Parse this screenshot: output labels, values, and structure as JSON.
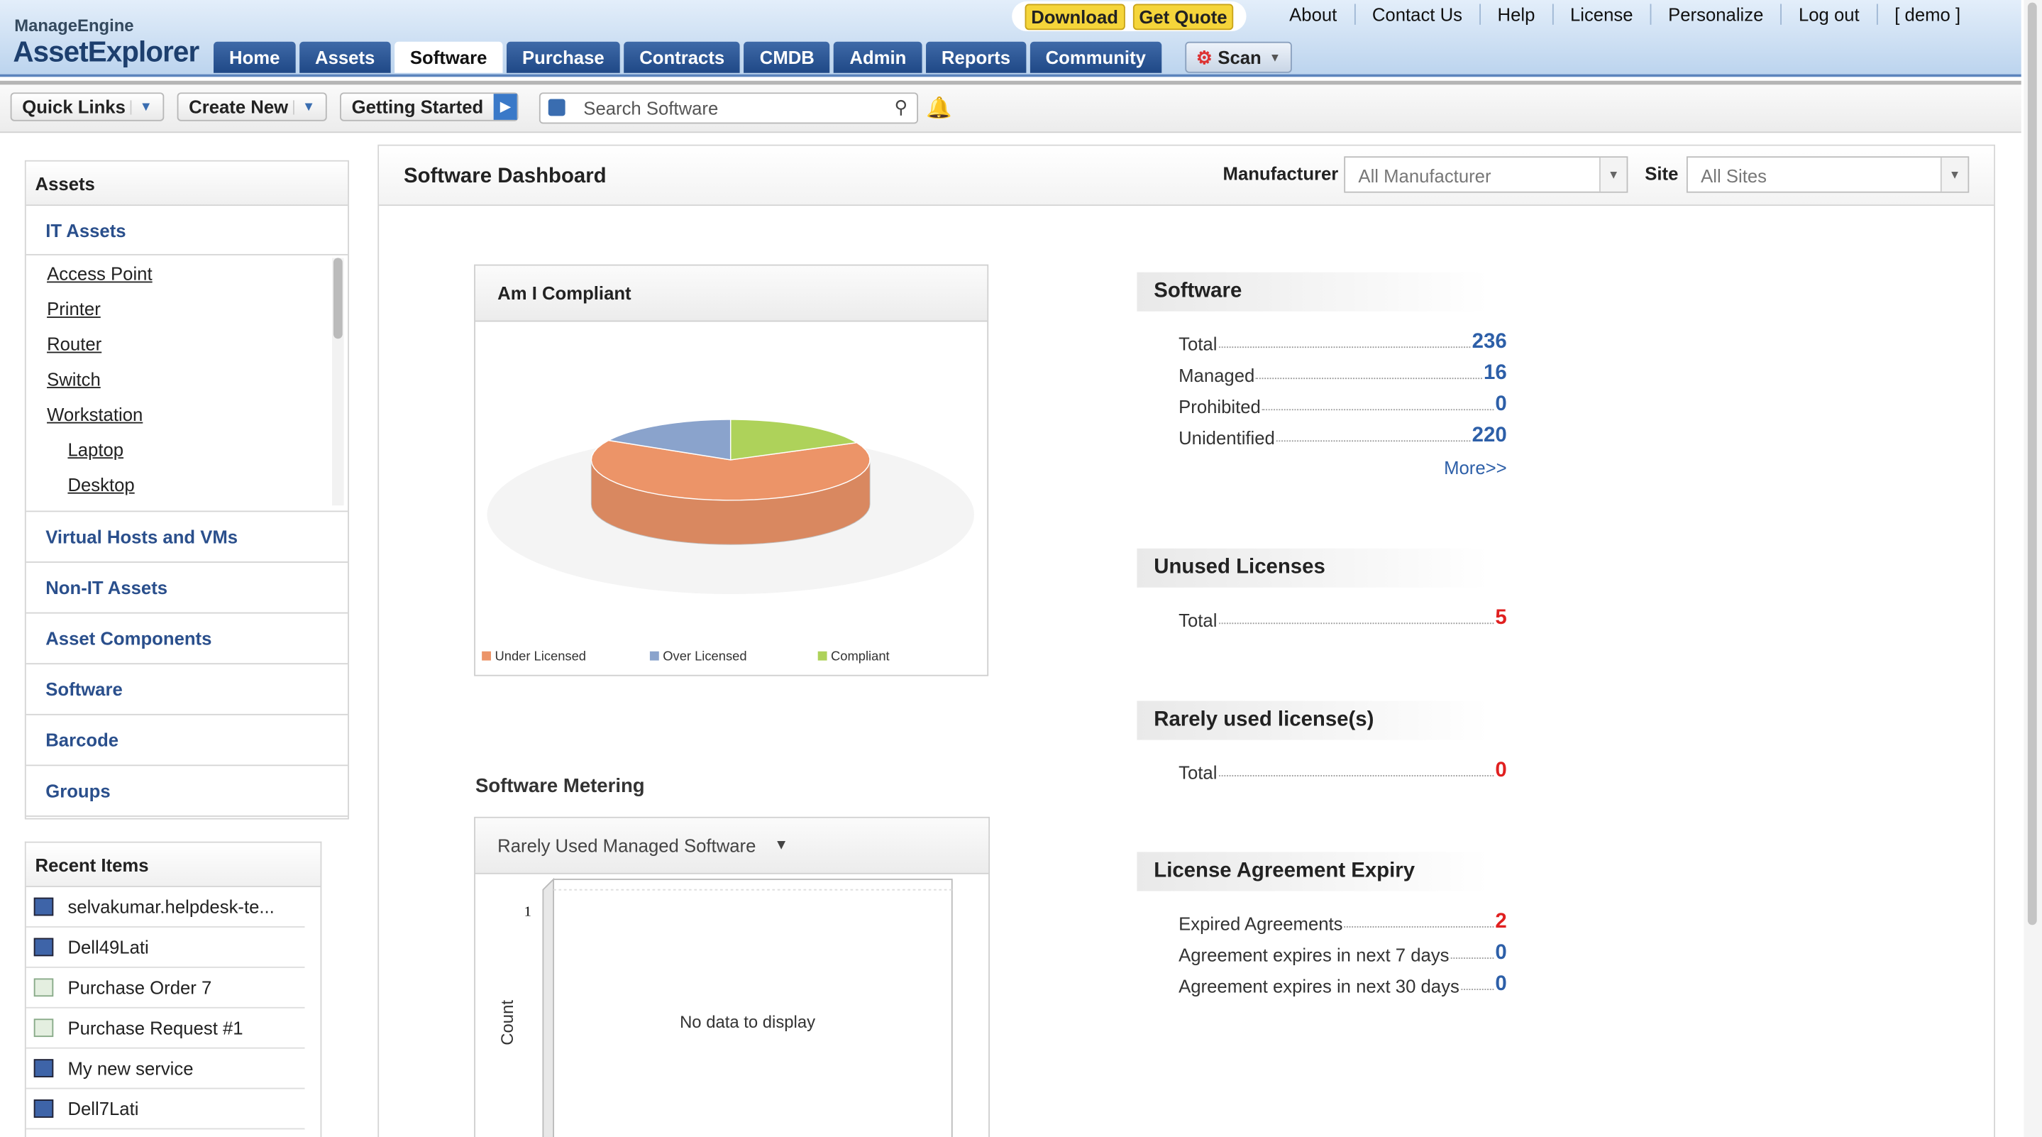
{
  "header": {
    "logo_brand": "ManageEngine",
    "logo_product": "AssetExplorer",
    "promo_buttons": [
      "Download",
      "Get Quote"
    ],
    "top_links": [
      "About",
      "Contact Us",
      "Help",
      "License",
      "Personalize",
      "Log out",
      "[ demo ]"
    ],
    "tabs": [
      "Home",
      "Assets",
      "Software",
      "Purchase",
      "Contracts",
      "CMDB",
      "Admin",
      "Reports",
      "Community"
    ],
    "scan_button": "Scan"
  },
  "toolbar": {
    "quick_links": "Quick Links",
    "create_new": "Create New",
    "getting_started": "Getting Started",
    "search_placeholder": "Search Software"
  },
  "sidebar": {
    "title": "Assets",
    "it_assets": "IT Assets",
    "it_asset_types": [
      {
        "label": "Access Point"
      },
      {
        "label": "Printer"
      },
      {
        "label": "Router"
      },
      {
        "label": "Switch"
      },
      {
        "label": "Workstation",
        "children": [
          "Laptop",
          "Desktop"
        ]
      }
    ],
    "asset_groups": [
      "Virtual Hosts and VMs",
      "Non-IT Assets",
      "Asset Components",
      "Software",
      "Barcode",
      "Groups"
    ],
    "recent_items": {
      "title": "Recent Items",
      "items": [
        "selvakumar.helpdesk-te...",
        "Dell49Lati",
        "Purchase Order 7",
        "Purchase Request #1",
        "My new service",
        "Dell7Lati"
      ]
    }
  },
  "dashboard": {
    "title": "Software Dashboard",
    "manufacturer_label": "Manufacturer",
    "manufacturer_value": "All Manufacturer",
    "site_label": "Site",
    "site_value": "All Sites",
    "compliance_chart": {
      "type": "pie",
      "title": "Am I Compliant",
      "categories": [
        "Under Licensed",
        "Over Licensed",
        "Compliant"
      ],
      "values": [
        65,
        17,
        18
      ],
      "colors": [
        "#ec9468",
        "#8aa3cc",
        "#aed25a"
      ]
    },
    "metering": {
      "title": "Software Metering",
      "dropdown": "Rarely Used Managed Software",
      "y_label": "Count",
      "yticks": [
        1
      ],
      "message": "No data to display"
    },
    "summaries": [
      {
        "title": "Software",
        "rows": [
          {
            "label": "Total",
            "value": 236,
            "color": "#2d5fa8"
          },
          {
            "label": "Managed",
            "value": 16,
            "color": "#2d5fa8"
          },
          {
            "label": "Prohibited",
            "value": 0,
            "color": "#2d5fa8"
          },
          {
            "label": "Unidentified",
            "value": 220,
            "color": "#2d5fa8"
          }
        ],
        "more": "More>>"
      },
      {
        "title": "Unused Licenses",
        "rows": [
          {
            "label": "Total",
            "value": 5,
            "color": "#e02020"
          }
        ]
      },
      {
        "title": "Rarely used license(s)",
        "rows": [
          {
            "label": "Total",
            "value": 0,
            "color": "#e02020"
          }
        ]
      },
      {
        "title": "License Agreement Expiry",
        "rows": [
          {
            "label": "Expired Agreements",
            "value": 2,
            "color": "#e02020"
          },
          {
            "label": "Agreement expires in next 7 days",
            "value": 0,
            "color": "#2d5fa8"
          },
          {
            "label": "Agreement expires in next 30 days",
            "value": 0,
            "color": "#2d5fa8"
          }
        ]
      }
    ]
  }
}
